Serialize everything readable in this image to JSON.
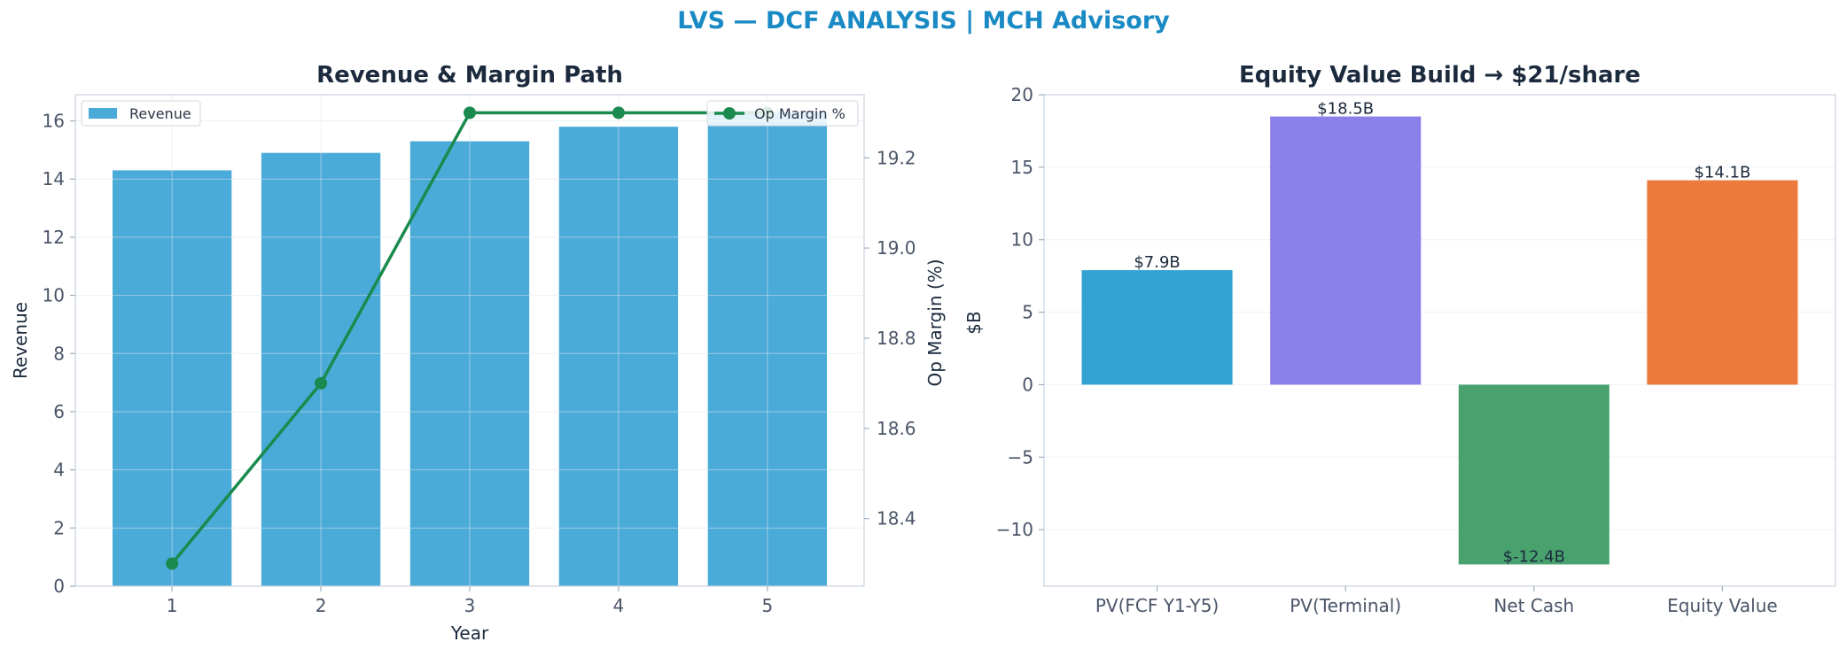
{
  "figure": {
    "title": "LVS — DCF ANALYSIS | MCH Advisory"
  },
  "chart_data": [
    {
      "type": "bar+line",
      "title": "Revenue & Margin Path",
      "xlabel": "Year",
      "ylabel": "Revenue",
      "y2label": "Op Margin (%)",
      "categories": [
        "1",
        "2",
        "3",
        "4",
        "5"
      ],
      "series": [
        {
          "name": "Revenue",
          "type": "bar",
          "axis": "left",
          "color": "#4aabd8",
          "values": [
            14.3,
            14.9,
            15.3,
            15.8,
            16.3
          ]
        },
        {
          "name": "Op Margin %",
          "type": "line",
          "axis": "right",
          "color": "#1a8a4e",
          "values": [
            18.3,
            18.7,
            19.3,
            19.3,
            19.3
          ]
        }
      ],
      "ylim": [
        0,
        16.9
      ],
      "yticks": [
        0,
        2,
        4,
        6,
        8,
        10,
        12,
        14,
        16
      ],
      "y2lim": [
        18.25,
        19.34
      ],
      "y2ticks": [
        18.4,
        18.6,
        18.8,
        19.0,
        19.2
      ],
      "legend_left": "top-left",
      "legend_right": "top-right",
      "grid": true
    },
    {
      "type": "bar",
      "title": "Equity Value Build → $21/share",
      "ylabel": "$B",
      "categories": [
        "PV(FCF Y1-Y5)",
        "PV(Terminal)",
        "Net Cash",
        "Equity Value"
      ],
      "values": [
        7.9,
        18.5,
        -12.4,
        14.1
      ],
      "data_labels": [
        "$7.9B",
        "$18.5B",
        "$-12.4B",
        "$14.1B"
      ],
      "colors": [
        "#33a3d4",
        "#8b7fea",
        "#49a26e",
        "#ec7a3c"
      ],
      "ylim": [
        -13.9,
        20
      ],
      "yticks": [
        -10,
        -5,
        0,
        5,
        10,
        15,
        20
      ],
      "grid": true
    }
  ]
}
